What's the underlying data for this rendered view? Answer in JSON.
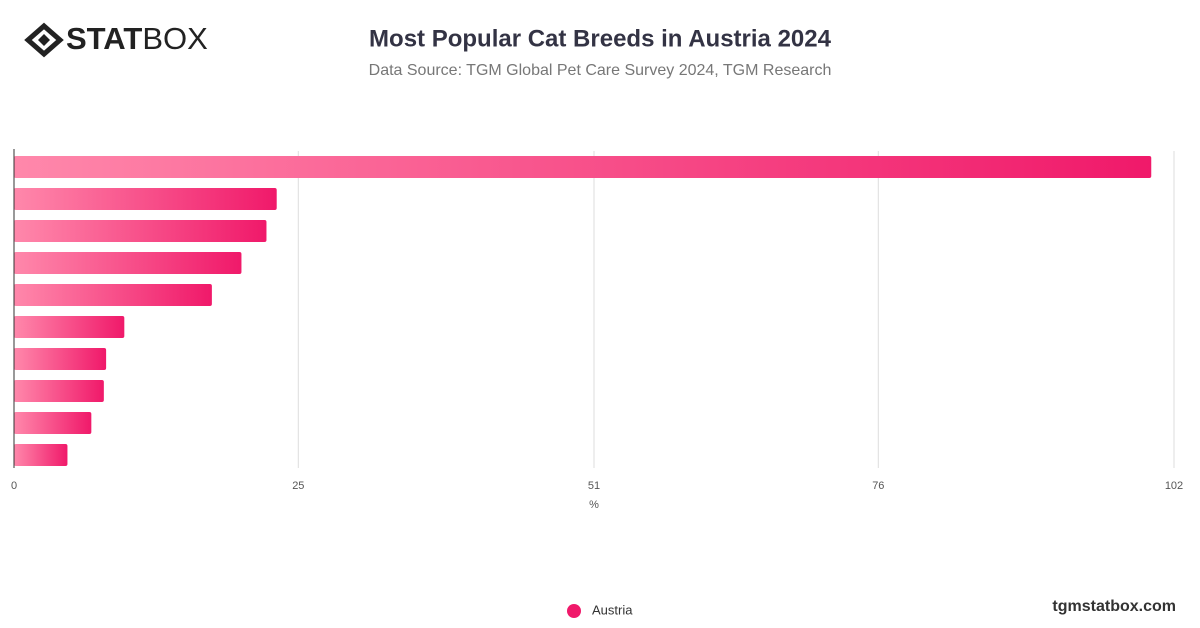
{
  "brand": {
    "strong": "STAT",
    "light": "BOX"
  },
  "footer": "tgmstatbox.com",
  "chart_data": {
    "type": "hbar",
    "title": "Most Popular Cat Breeds in Austria 2024",
    "subtitle": "Data Source: TGM Global Pet Care Survey 2024, TGM Research",
    "x_label": "%",
    "categories": [
      null,
      null,
      null,
      null,
      null,
      null,
      null,
      null,
      null,
      null
    ],
    "series": [
      {
        "name": "Austria",
        "color": "#f0196a",
        "values": [
          100,
          23.1,
          22.2,
          20,
          17.4,
          9.7,
          8.1,
          7.9,
          6.8,
          4.7
        ]
      }
    ],
    "xlim": [
      0,
      102
    ],
    "xticks": [
      0,
      25,
      51,
      76,
      102
    ],
    "grid": true,
    "legend": "bottom"
  }
}
